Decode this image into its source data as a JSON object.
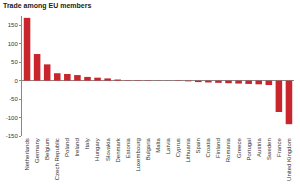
{
  "chart_data": {
    "type": "bar",
    "title": "Trade among EU members",
    "categories": [
      "Netherlands",
      "Germany",
      "Belgium",
      "Czech Republic",
      "Poland",
      "Ireland",
      "Italy",
      "Hungary",
      "Slovakia",
      "Denmark",
      "Estonia",
      "Luxembourg",
      "Bulgaria",
      "Malta",
      "Latvia",
      "Cyprus",
      "Lithuania",
      "Spain",
      "Croatia",
      "Finland",
      "Romania",
      "Greece",
      "Portugal",
      "Austria",
      "Sweden",
      "France",
      "United Kingdom"
    ],
    "values": [
      170,
      72,
      44,
      20,
      18,
      15,
      10,
      8,
      6,
      3,
      1,
      1,
      1,
      0.5,
      -0.5,
      -1,
      -2,
      -4,
      -5,
      -6,
      -7,
      -8,
      -9,
      -10,
      -12,
      -85,
      -118
    ],
    "color": "#c8262c",
    "ylim": [
      -150,
      175
    ],
    "yticks": [
      -150,
      -100,
      -50,
      0,
      50,
      100,
      150
    ],
    "grid": false
  }
}
